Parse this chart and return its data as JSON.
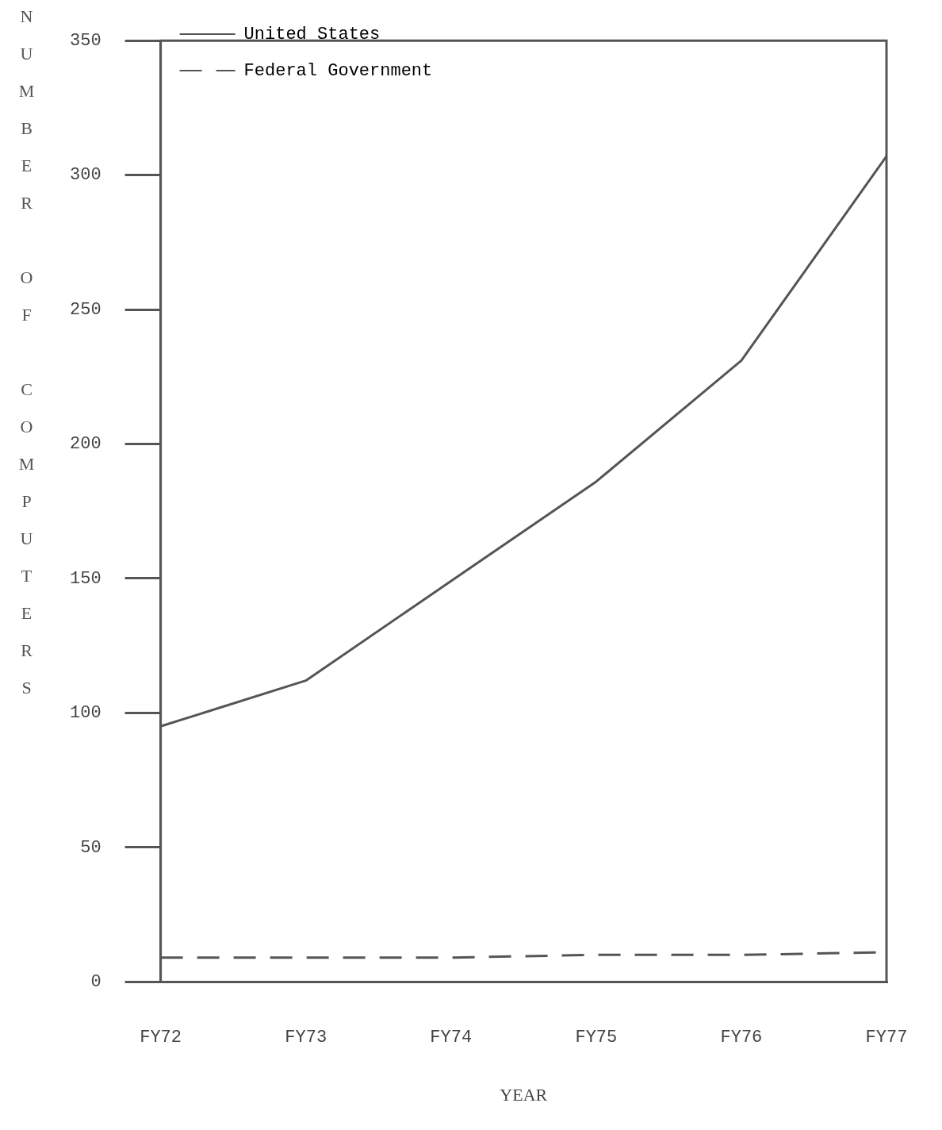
{
  "chart_data": {
    "type": "line",
    "xlabel": "YEAR",
    "ylabel": "NUMBER OF COMPUTERS",
    "categories": [
      "FY72",
      "FY73",
      "FY74",
      "FY75",
      "FY76",
      "FY77"
    ],
    "series": [
      {
        "name": "United States",
        "color": "#555555",
        "values": [
          95,
          112,
          149,
          186,
          231,
          307
        ],
        "line_style": "solid"
      },
      {
        "name": "Federal Government",
        "color": "#555555",
        "values": [
          9,
          9,
          9,
          10,
          10,
          11
        ],
        "line_style": "dashed"
      }
    ],
    "ylim": [
      0,
      350
    ],
    "yticks": [
      0,
      50,
      100,
      150,
      200,
      250,
      300,
      350
    ],
    "grid": false,
    "legend": "top left",
    "marker": "none"
  }
}
